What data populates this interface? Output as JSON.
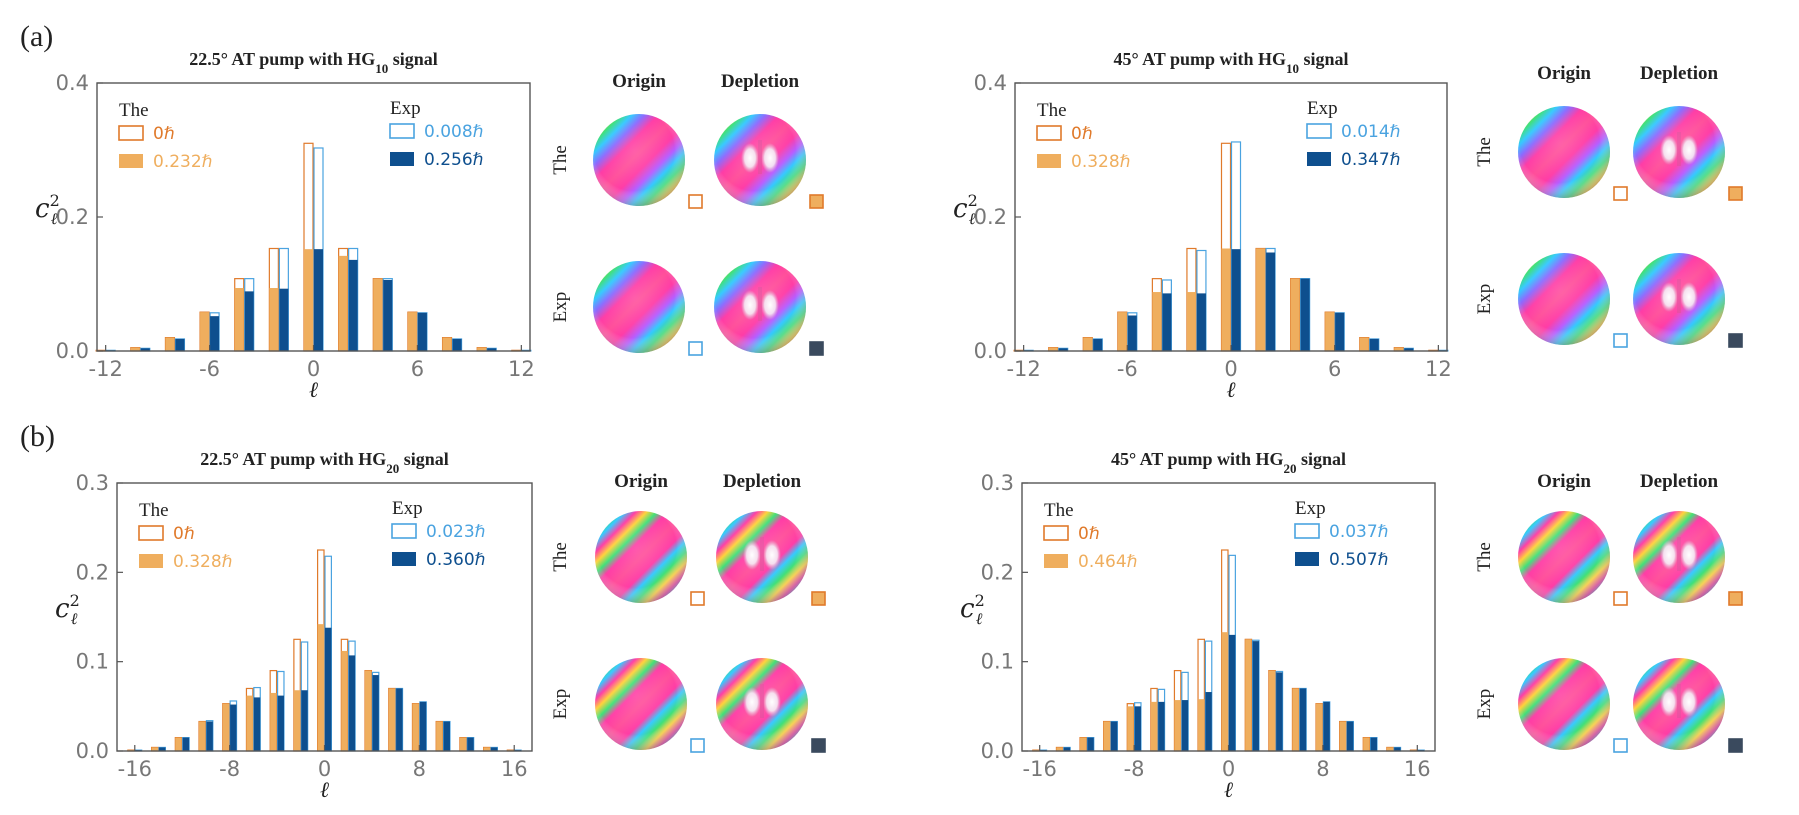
{
  "panel_labels": [
    "(a)",
    "(b)"
  ],
  "colors": {
    "the_0": "#e07a2b",
    "the_dep": "#efae5e",
    "exp_0": "#4aa3e0",
    "exp_dep": "#0e4f8e",
    "axis": "#555555",
    "tick_text": "#777777"
  },
  "sphere_labels": {
    "col1": "Origin",
    "col2": "Depletion",
    "row1": "The",
    "row2": "Exp"
  },
  "chart_data": [
    {
      "type": "bar",
      "title_main": "22.5° AT pump with HG",
      "title_sub": "10",
      "title_tail": " signal",
      "xlabel": "ℓ",
      "ylabel": "c",
      "ylabel_sup": "2",
      "ylabel_sub": "ℓ",
      "xlim": [
        -12.5,
        12.5
      ],
      "ylim": [
        0,
        0.4
      ],
      "xticks": [
        -12,
        -6,
        0,
        6,
        12
      ],
      "xticklabels": [
        "-12",
        "-6",
        "0",
        "6",
        "12"
      ],
      "yticks": [
        0.0,
        0.2,
        0.4
      ],
      "yticklabels": [
        "0.0",
        "0.2",
        "0.4"
      ],
      "legend": {
        "the_title": "The",
        "exp_title": "Exp",
        "the_0": "0ℏ",
        "the_dep": "0.232ℏ",
        "exp_0": "0.008ℏ",
        "exp_dep": "0.256ℏ"
      },
      "x": [
        -12,
        -10,
        -8,
        -6,
        -4,
        -2,
        0,
        2,
        4,
        6,
        8,
        10,
        12
      ],
      "series": [
        {
          "name": "0ℏ",
          "group": "The",
          "style": "outline",
          "values": [
            0.001,
            0.005,
            0.02,
            0.058,
            0.108,
            0.153,
            0.31,
            0.153,
            0.108,
            0.058,
            0.02,
            0.005,
            0.001
          ]
        },
        {
          "name": "0.008ℏ",
          "group": "Exp",
          "style": "outline",
          "values": [
            0.001,
            0.004,
            0.018,
            0.057,
            0.108,
            0.153,
            0.303,
            0.153,
            0.108,
            0.057,
            0.018,
            0.004,
            0.001
          ]
        },
        {
          "name": "0.232ℏ",
          "group": "The",
          "style": "filled",
          "values": [
            0.001,
            0.005,
            0.02,
            0.058,
            0.094,
            0.094,
            0.152,
            0.142,
            0.108,
            0.058,
            0.02,
            0.005,
            0.001
          ]
        },
        {
          "name": "0.256ℏ",
          "group": "Exp",
          "style": "filled",
          "values": [
            0.001,
            0.004,
            0.018,
            0.052,
            0.089,
            0.093,
            0.152,
            0.136,
            0.106,
            0.057,
            0.018,
            0.004,
            0.001
          ]
        }
      ]
    },
    {
      "type": "bar",
      "title_main": "45° AT pump with HG",
      "title_sub": "10",
      "title_tail": " signal",
      "xlabel": "ℓ",
      "ylabel": "c",
      "ylabel_sup": "2",
      "ylabel_sub": "ℓ",
      "xlim": [
        -12.5,
        12.5
      ],
      "ylim": [
        0,
        0.4
      ],
      "xticks": [
        -12,
        -6,
        0,
        6,
        12
      ],
      "xticklabels": [
        "-12",
        "-6",
        "0",
        "6",
        "12"
      ],
      "yticks": [
        0.0,
        0.2,
        0.4
      ],
      "yticklabels": [
        "0.0",
        "0.2",
        "0.4"
      ],
      "legend": {
        "the_title": "The",
        "exp_title": "Exp",
        "the_0": "0ℏ",
        "the_dep": "0.328ℏ",
        "exp_0": "0.014ℏ",
        "exp_dep": "0.347ℏ"
      },
      "x": [
        -12,
        -10,
        -8,
        -6,
        -4,
        -2,
        0,
        2,
        4,
        6,
        8,
        10,
        12
      ],
      "series": [
        {
          "name": "0ℏ",
          "group": "The",
          "style": "outline",
          "values": [
            0.001,
            0.005,
            0.02,
            0.058,
            0.108,
            0.153,
            0.31,
            0.153,
            0.108,
            0.058,
            0.02,
            0.005,
            0.001
          ]
        },
        {
          "name": "0.014ℏ",
          "group": "Exp",
          "style": "outline",
          "values": [
            0.001,
            0.004,
            0.018,
            0.057,
            0.106,
            0.15,
            0.312,
            0.153,
            0.108,
            0.057,
            0.018,
            0.004,
            0.001
          ]
        },
        {
          "name": "0.328ℏ",
          "group": "The",
          "style": "filled",
          "values": [
            0.001,
            0.005,
            0.02,
            0.058,
            0.088,
            0.088,
            0.153,
            0.153,
            0.108,
            0.058,
            0.02,
            0.005,
            0.001
          ]
        },
        {
          "name": "0.347ℏ",
          "group": "Exp",
          "style": "filled",
          "values": [
            0.001,
            0.004,
            0.018,
            0.053,
            0.086,
            0.086,
            0.152,
            0.147,
            0.108,
            0.057,
            0.018,
            0.004,
            0.001
          ]
        }
      ]
    },
    {
      "type": "bar",
      "title_main": "22.5° AT pump with HG",
      "title_sub": "20",
      "title_tail": " signal",
      "xlabel": "ℓ",
      "ylabel": "c",
      "ylabel_sup": "2",
      "ylabel_sub": "ℓ",
      "xlim": [
        -17.5,
        17.5
      ],
      "ylim": [
        0,
        0.3
      ],
      "xticks": [
        -16,
        -8,
        0,
        8,
        16
      ],
      "xticklabels": [
        "-16",
        "-8",
        "0",
        "8",
        "16"
      ],
      "yticks": [
        0.0,
        0.1,
        0.2,
        0.3
      ],
      "yticklabels": [
        "0.0",
        "0.1",
        "0.2",
        "0.3"
      ],
      "legend": {
        "the_title": "The",
        "exp_title": "Exp",
        "the_0": "0ℏ",
        "the_dep": "0.328ℏ",
        "exp_0": "0.023ℏ",
        "exp_dep": "0.360ℏ"
      },
      "x": [
        -16,
        -14,
        -12,
        -10,
        -8,
        -6,
        -4,
        -2,
        0,
        2,
        4,
        6,
        8,
        10,
        12,
        14,
        16
      ],
      "series": [
        {
          "name": "0ℏ",
          "group": "The",
          "style": "outline",
          "values": [
            0.001,
            0.004,
            0.015,
            0.033,
            0.053,
            0.07,
            0.09,
            0.125,
            0.225,
            0.125,
            0.09,
            0.07,
            0.053,
            0.033,
            0.015,
            0.004,
            0.001
          ]
        },
        {
          "name": "0.023ℏ",
          "group": "Exp",
          "style": "outline",
          "values": [
            0.001,
            0.004,
            0.015,
            0.034,
            0.056,
            0.071,
            0.089,
            0.122,
            0.218,
            0.123,
            0.088,
            0.07,
            0.055,
            0.033,
            0.015,
            0.004,
            0.001
          ]
        },
        {
          "name": "0.328ℏ",
          "group": "The",
          "style": "filled",
          "values": [
            0.001,
            0.004,
            0.015,
            0.033,
            0.053,
            0.062,
            0.065,
            0.068,
            0.142,
            0.112,
            0.09,
            0.07,
            0.053,
            0.033,
            0.015,
            0.004,
            0.001
          ]
        },
        {
          "name": "0.360ℏ",
          "group": "Exp",
          "style": "filled",
          "values": [
            0.001,
            0.004,
            0.015,
            0.033,
            0.052,
            0.06,
            0.062,
            0.068,
            0.138,
            0.107,
            0.085,
            0.07,
            0.055,
            0.033,
            0.015,
            0.004,
            0.001
          ]
        }
      ]
    },
    {
      "type": "bar",
      "title_main": "45° AT pump with HG",
      "title_sub": "20",
      "title_tail": " signal",
      "xlabel": "ℓ",
      "ylabel": "c",
      "ylabel_sup": "2",
      "ylabel_sub": "ℓ",
      "xlim": [
        -17.5,
        17.5
      ],
      "ylim": [
        0,
        0.3
      ],
      "xticks": [
        -16,
        -8,
        0,
        8,
        16
      ],
      "xticklabels": [
        "-16",
        "-8",
        "0",
        "8",
        "16"
      ],
      "yticks": [
        0.0,
        0.1,
        0.2,
        0.3
      ],
      "yticklabels": [
        "0.0",
        "0.1",
        "0.2",
        "0.3"
      ],
      "legend": {
        "the_title": "The",
        "exp_title": "Exp",
        "the_0": "0ℏ",
        "the_dep": "0.464ℏ",
        "exp_0": "0.037ℏ",
        "exp_dep": "0.507ℏ"
      },
      "x": [
        -16,
        -14,
        -12,
        -10,
        -8,
        -6,
        -4,
        -2,
        0,
        2,
        4,
        6,
        8,
        10,
        12,
        14,
        16
      ],
      "series": [
        {
          "name": "0ℏ",
          "group": "The",
          "style": "outline",
          "values": [
            0.001,
            0.004,
            0.015,
            0.033,
            0.053,
            0.07,
            0.09,
            0.125,
            0.225,
            0.125,
            0.09,
            0.07,
            0.053,
            0.033,
            0.015,
            0.004,
            0.001
          ]
        },
        {
          "name": "0.037ℏ",
          "group": "Exp",
          "style": "outline",
          "values": [
            0.001,
            0.004,
            0.015,
            0.033,
            0.054,
            0.069,
            0.088,
            0.123,
            0.219,
            0.124,
            0.089,
            0.07,
            0.055,
            0.033,
            0.015,
            0.004,
            0.001
          ]
        },
        {
          "name": "0.464ℏ",
          "group": "The",
          "style": "filled",
          "values": [
            0.001,
            0.004,
            0.015,
            0.033,
            0.05,
            0.055,
            0.057,
            0.058,
            0.133,
            0.125,
            0.09,
            0.07,
            0.053,
            0.033,
            0.015,
            0.004,
            0.001
          ]
        },
        {
          "name": "0.507ℏ",
          "group": "Exp",
          "style": "filled",
          "values": [
            0.001,
            0.004,
            0.015,
            0.033,
            0.05,
            0.055,
            0.057,
            0.066,
            0.13,
            0.123,
            0.088,
            0.07,
            0.055,
            0.033,
            0.015,
            0.004,
            0.001
          ]
        }
      ]
    }
  ]
}
